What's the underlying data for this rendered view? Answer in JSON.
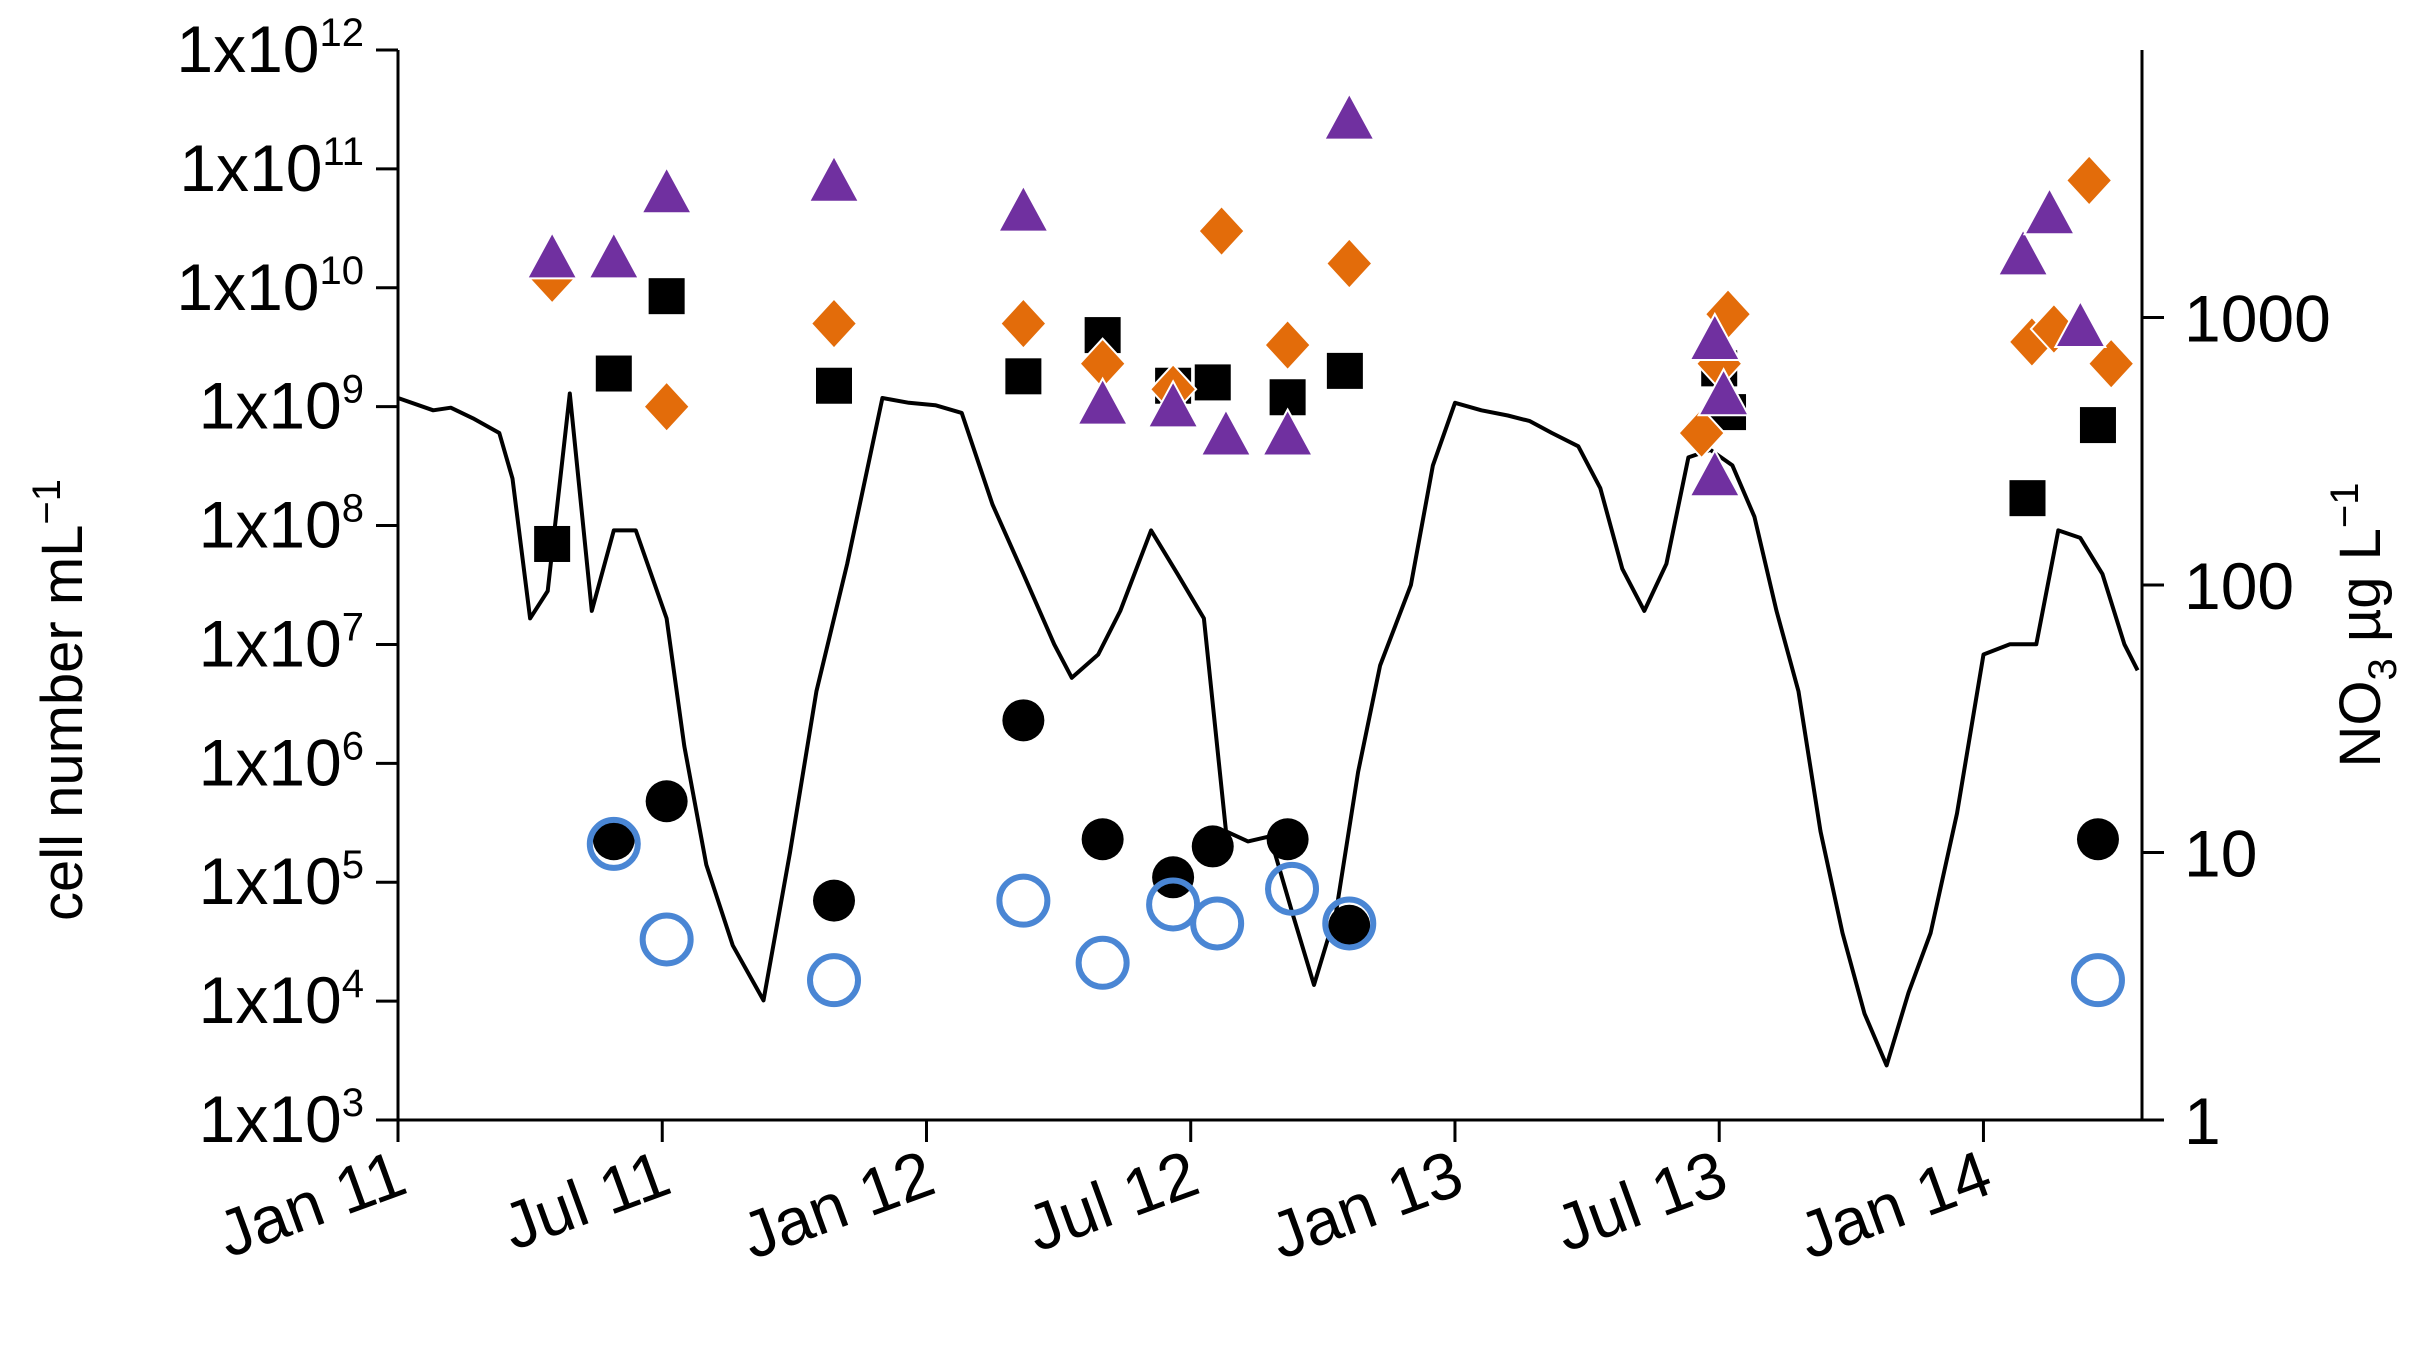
{
  "chart_data": {
    "type": "scatter",
    "title": "",
    "xlabel": "",
    "ylabel_left": "cell number mL",
    "ylabel_left_unit_sup": "−1",
    "ylabel_right": "NO",
    "ylabel_right_sub": "3",
    "ylabel_right_unit": " µg L",
    "ylabel_right_unit_sup": "−1",
    "x_ticks": [
      {
        "label": "Jan 11",
        "t": 0
      },
      {
        "label": "Jul 11",
        "t": 6
      },
      {
        "label": "Jan 12",
        "t": 12
      },
      {
        "label": "Jul 12",
        "t": 18
      },
      {
        "label": "Jan 13",
        "t": 24
      },
      {
        "label": "Jul 13",
        "t": 30
      },
      {
        "label": "Jan 14",
        "t": 36
      }
    ],
    "x_range_months": [
      0,
      39.6
    ],
    "y_left": {
      "scale": "log",
      "range": [
        1000,
        1000000000000
      ],
      "ticks": [
        {
          "base": "1x10",
          "exp": "3",
          "value": 1000
        },
        {
          "base": "1x10",
          "exp": "4",
          "value": 10000
        },
        {
          "base": "1x10",
          "exp": "5",
          "value": 100000
        },
        {
          "base": "1x10",
          "exp": "6",
          "value": 1000000
        },
        {
          "base": "1x10",
          "exp": "7",
          "value": 10000000
        },
        {
          "base": "1x10",
          "exp": "8",
          "value": 100000000
        },
        {
          "base": "1x10",
          "exp": "9",
          "value": 1000000000
        },
        {
          "base": "1x10",
          "exp": "10",
          "value": 10000000000
        },
        {
          "base": "1x10",
          "exp": "11",
          "value": 100000000000
        },
        {
          "base": "1x10",
          "exp": "12",
          "value": 1000000000000
        }
      ]
    },
    "y_right": {
      "scale": "log",
      "range": [
        1,
        10000
      ],
      "ticks": [
        {
          "label": "1",
          "value": 1
        },
        {
          "label": "10",
          "value": 10
        },
        {
          "label": "100",
          "value": 100
        },
        {
          "label": "1000",
          "value": 1000
        }
      ]
    },
    "colors": {
      "square": "#000000",
      "diamond": "#e36c0a",
      "triangle": "#7030a0",
      "filled_circle": "#000000",
      "open_circle": "#4a86d4",
      "line": "#000000"
    },
    "series": [
      {
        "name": "NO3",
        "marker": "line",
        "axis": "right",
        "points": [
          [
            0,
            500
          ],
          [
            0.8,
            450
          ],
          [
            1.2,
            460
          ],
          [
            1.7,
            420
          ],
          [
            2.3,
            370
          ],
          [
            2.6,
            250
          ],
          [
            3.0,
            75
          ],
          [
            3.4,
            95
          ],
          [
            3.9,
            520
          ],
          [
            4.4,
            80
          ],
          [
            4.9,
            160
          ],
          [
            5.4,
            160
          ],
          [
            6.1,
            75
          ],
          [
            6.5,
            25
          ],
          [
            7.0,
            9
          ],
          [
            7.6,
            4.5
          ],
          [
            8.3,
            2.8
          ],
          [
            8.9,
            10
          ],
          [
            9.5,
            40
          ],
          [
            10.2,
            120
          ],
          [
            11.0,
            500
          ],
          [
            11.6,
            480
          ],
          [
            12.2,
            470
          ],
          [
            12.8,
            440
          ],
          [
            13.5,
            200
          ],
          [
            14.2,
            110
          ],
          [
            14.9,
            60
          ],
          [
            15.3,
            45
          ],
          [
            15.9,
            55
          ],
          [
            16.4,
            80
          ],
          [
            17.1,
            160
          ],
          [
            17.7,
            110
          ],
          [
            18.3,
            75
          ],
          [
            18.8,
            12
          ],
          [
            19.3,
            11
          ],
          [
            19.8,
            11.5
          ],
          [
            20.3,
            6
          ],
          [
            20.8,
            3.2
          ],
          [
            21.3,
            6
          ],
          [
            21.8,
            20
          ],
          [
            22.3,
            50
          ],
          [
            23.0,
            100
          ],
          [
            23.5,
            280
          ],
          [
            24.0,
            480
          ],
          [
            24.6,
            450
          ],
          [
            25.2,
            430
          ],
          [
            25.7,
            410
          ],
          [
            26.2,
            370
          ],
          [
            26.8,
            330
          ],
          [
            27.3,
            230
          ],
          [
            27.8,
            115
          ],
          [
            28.3,
            80
          ],
          [
            28.8,
            120
          ],
          [
            29.3,
            300
          ],
          [
            29.8,
            320
          ],
          [
            30.3,
            280
          ],
          [
            30.8,
            180
          ],
          [
            31.3,
            80
          ],
          [
            31.8,
            40
          ],
          [
            32.3,
            12
          ],
          [
            32.8,
            5
          ],
          [
            33.3,
            2.5
          ],
          [
            33.8,
            1.6
          ],
          [
            34.3,
            3
          ],
          [
            34.8,
            5
          ],
          [
            35.4,
            14
          ],
          [
            36.0,
            55
          ],
          [
            36.6,
            60
          ],
          [
            37.2,
            60
          ],
          [
            37.7,
            160
          ],
          [
            38.2,
            150
          ],
          [
            38.7,
            110
          ],
          [
            39.2,
            60
          ],
          [
            39.5,
            48
          ]
        ]
      },
      {
        "name": "squares",
        "marker": "square",
        "axis": "left",
        "points": [
          [
            3.5,
            70000000
          ],
          [
            4.9,
            1900000000
          ],
          [
            6.1,
            8500000000
          ],
          [
            9.9,
            1500000000
          ],
          [
            14.2,
            1800000000
          ],
          [
            16.0,
            4000000000
          ],
          [
            17.6,
            1500000000
          ],
          [
            18.5,
            1600000000
          ],
          [
            20.2,
            1200000000
          ],
          [
            21.5,
            2000000000
          ],
          [
            30.0,
            2100000000
          ],
          [
            30.2,
            900000000
          ],
          [
            37.0,
            170000000
          ],
          [
            38.6,
            700000000
          ]
        ]
      },
      {
        "name": "diamonds",
        "marker": "diamond",
        "axis": "left",
        "points": [
          [
            3.5,
            12000000000
          ],
          [
            6.1,
            1000000000
          ],
          [
            9.9,
            5000000000
          ],
          [
            14.2,
            5000000000
          ],
          [
            16.0,
            2300000000
          ],
          [
            17.6,
            1400000000
          ],
          [
            18.7,
            30000000000
          ],
          [
            20.2,
            3300000000
          ],
          [
            21.6,
            16000000000
          ],
          [
            29.6,
            600000000
          ],
          [
            30.2,
            6000000000
          ],
          [
            30.0,
            2300000000
          ],
          [
            37.1,
            3500000000
          ],
          [
            37.6,
            4500000000
          ],
          [
            38.4,
            80000000000
          ],
          [
            38.9,
            2300000000
          ]
        ]
      },
      {
        "name": "triangles",
        "marker": "triangle",
        "axis": "left",
        "points": [
          [
            3.5,
            17000000000
          ],
          [
            4.9,
            17000000000
          ],
          [
            6.1,
            60000000000
          ],
          [
            9.9,
            75000000000
          ],
          [
            14.2,
            42000000000
          ],
          [
            16.0,
            1000000000
          ],
          [
            17.6,
            950000000
          ],
          [
            18.8,
            550000000
          ],
          [
            20.2,
            550000000
          ],
          [
            21.6,
            250000000000
          ],
          [
            29.9,
            3500000000
          ],
          [
            29.9,
            250000000
          ],
          [
            30.1,
            1200000000
          ],
          [
            36.9,
            18000000000
          ],
          [
            37.5,
            40000000000
          ],
          [
            38.2,
            4500000000
          ]
        ]
      },
      {
        "name": "filled circles",
        "marker": "circle-filled",
        "axis": "left",
        "points": [
          [
            4.9,
            230000
          ],
          [
            6.1,
            480000
          ],
          [
            9.9,
            70000
          ],
          [
            14.2,
            2300000
          ],
          [
            16.0,
            230000
          ],
          [
            17.6,
            110000
          ],
          [
            18.5,
            200000
          ],
          [
            20.2,
            230000
          ],
          [
            21.6,
            43000
          ],
          [
            38.6,
            230000
          ]
        ]
      },
      {
        "name": "open circles",
        "marker": "circle-open",
        "axis": "left",
        "points": [
          [
            4.9,
            210000
          ],
          [
            6.1,
            33000
          ],
          [
            9.9,
            15000
          ],
          [
            14.2,
            70000
          ],
          [
            16.0,
            21000
          ],
          [
            17.6,
            65000
          ],
          [
            18.6,
            45000
          ],
          [
            20.3,
            88000
          ],
          [
            21.6,
            45000
          ],
          [
            38.6,
            15000
          ]
        ]
      }
    ]
  }
}
